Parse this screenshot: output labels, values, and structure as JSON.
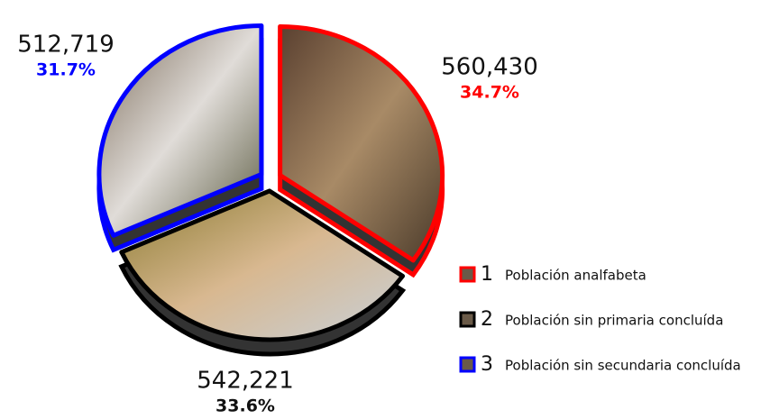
{
  "chart_data": {
    "type": "pie",
    "categories": [
      "Población analfabeta",
      "Población sin primaria concluída",
      "Población sin secundaria concluída"
    ],
    "category_numbers": [
      "1",
      "2",
      "3"
    ],
    "colors": [
      "#ff0000",
      "#000000",
      "#0000ff"
    ],
    "values": [
      560430,
      542221,
      512719
    ],
    "value_labels": [
      "560,430",
      "542,221",
      "512,719"
    ],
    "percents": [
      34.7,
      33.6,
      31.7
    ],
    "percent_labels": [
      "34.7%",
      "33.6%",
      "31.7%"
    ]
  }
}
